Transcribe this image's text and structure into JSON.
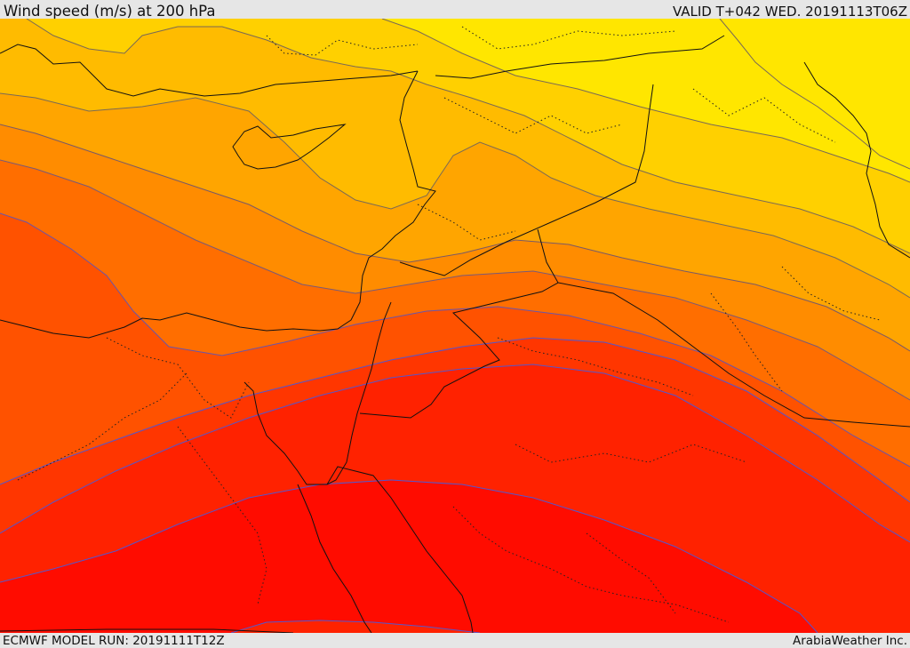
{
  "header": {
    "title": "Wind speed (m/s) at 200 hPa",
    "valid_time": "VALID T+042 WED. 20191113T06Z"
  },
  "footer": {
    "model_run": "ECMWF MODEL RUN: 20191111T12Z",
    "credit": "ArabiaWeather Inc."
  },
  "map": {
    "colors": {
      "band_1": "#ffff00",
      "band_2": "#ffe600",
      "band_3": "#ffd000",
      "band_4": "#ffbb00",
      "band_5": "#ffa500",
      "band_6": "#ff8c00",
      "band_7": "#ff6e00",
      "band_8": "#ff5200",
      "band_9": "#ff3600",
      "band_10": "#ff2200",
      "band_11": "#ff0c00",
      "contour_light": "#7a6a55",
      "contour_dark": "#5555cc",
      "border": "#111111"
    }
  }
}
